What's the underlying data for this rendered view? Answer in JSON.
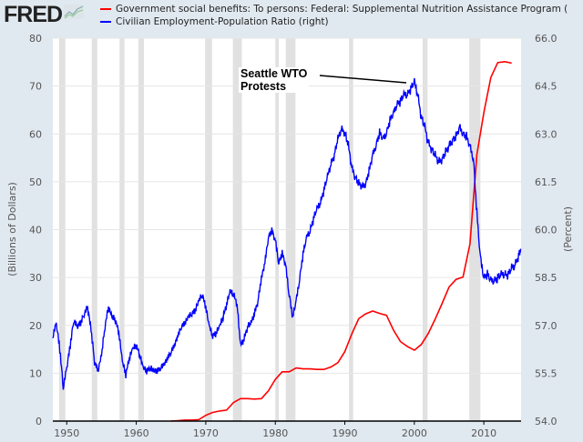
{
  "header": {
    "logo": "FRED",
    "logo_icon": "fred-chart-icon"
  },
  "chart_data": {
    "type": "line",
    "title": "",
    "xlabel": "",
    "ylabel_left": "(Billions of Dollars)",
    "ylabel_right": "(Percent)",
    "xlim": [
      1948,
      2015.35
    ],
    "ylim_left": [
      0,
      80
    ],
    "ylim_right": [
      54.0,
      66.0
    ],
    "x_ticks": [
      "1950",
      "1960",
      "1970",
      "1980",
      "1990",
      "2000",
      "2010"
    ],
    "y_ticks_left": [
      "0",
      "10",
      "20",
      "30",
      "40",
      "50",
      "60",
      "70",
      "80"
    ],
    "y_ticks_right": [
      "54.0",
      "55.5",
      "57.0",
      "58.5",
      "60.0",
      "61.5",
      "63.0",
      "64.5",
      "66.0"
    ],
    "grid": true,
    "legend_position": "top",
    "colors": {
      "snap": "#ff0000",
      "emp": "#0000ff",
      "recession": "#e1e1e1"
    },
    "recessions": [
      [
        1948.9,
        1949.8
      ],
      [
        1953.6,
        1954.4
      ],
      [
        1957.6,
        1958.3
      ],
      [
        1960.3,
        1961.1
      ],
      [
        1969.9,
        1970.9
      ],
      [
        1973.9,
        1975.2
      ],
      [
        1980.0,
        1980.5
      ],
      [
        1981.5,
        1982.9
      ],
      [
        1990.6,
        1991.2
      ],
      [
        2001.2,
        2001.9
      ],
      [
        2007.9,
        2009.5
      ]
    ],
    "annotation": {
      "text_line1": "Seattle WTO",
      "text_line2": "Protests",
      "target_x": 1999.9,
      "target_y_right": 64.5
    },
    "series": [
      {
        "name": "Government social benefits: To persons: Federal: Supplemental Nutrition Assistance Program (",
        "axis": "left",
        "x": [
          1965,
          1966,
          1967,
          1968,
          1969,
          1970,
          1971,
          1972,
          1973,
          1974,
          1975,
          1976,
          1977,
          1978,
          1979,
          1980,
          1981,
          1982,
          1983,
          1984,
          1985,
          1986,
          1987,
          1988,
          1989,
          1990,
          1991,
          1992,
          1993,
          1994,
          1995,
          1996,
          1997,
          1998,
          1999,
          2000,
          2001,
          2002,
          2003,
          2004,
          2005,
          2006,
          2007,
          2008,
          2009,
          2010,
          2011,
          2012,
          2013,
          2014
        ],
        "values": [
          0.0,
          0.1,
          0.2,
          0.2,
          0.3,
          1.2,
          1.8,
          2.1,
          2.3,
          3.9,
          4.7,
          4.7,
          4.6,
          4.7,
          6.3,
          8.7,
          10.3,
          10.3,
          11.1,
          10.9,
          10.9,
          10.8,
          10.8,
          11.3,
          12.2,
          14.5,
          18.2,
          21.4,
          22.4,
          23.0,
          22.5,
          22.1,
          19.0,
          16.6,
          15.6,
          14.8,
          16.0,
          18.3,
          21.3,
          24.6,
          28.0,
          29.6,
          30.1,
          37.0,
          55.7,
          64.5,
          71.8,
          74.9,
          75.1,
          74.8
        ]
      },
      {
        "name": "Civilian Employment-Population Ratio (right)",
        "axis": "right",
        "x": [
          1948,
          1948.5,
          1949,
          1949.5,
          1950,
          1950.5,
          1951,
          1951.5,
          1952,
          1952.5,
          1953,
          1953.5,
          1954,
          1954.5,
          1955,
          1955.5,
          1956,
          1956.5,
          1957,
          1957.5,
          1958,
          1958.5,
          1959,
          1959.5,
          1960,
          1960.5,
          1961,
          1961.5,
          1962,
          1962.5,
          1963,
          1963.5,
          1964,
          1964.5,
          1965,
          1965.5,
          1966,
          1966.5,
          1967,
          1967.5,
          1968,
          1968.5,
          1969,
          1969.5,
          1970,
          1970.5,
          1971,
          1971.5,
          1972,
          1972.5,
          1973,
          1973.5,
          1974,
          1974.5,
          1975,
          1975.5,
          1976,
          1976.5,
          1977,
          1977.5,
          1978,
          1978.5,
          1979,
          1979.5,
          1980,
          1980.5,
          1981,
          1981.5,
          1982,
          1982.5,
          1983,
          1983.5,
          1984,
          1984.5,
          1985,
          1985.5,
          1986,
          1986.5,
          1987,
          1987.5,
          1988,
          1988.5,
          1989,
          1989.5,
          1990,
          1990.5,
          1991,
          1991.5,
          1992,
          1992.5,
          1993,
          1993.5,
          1994,
          1994.5,
          1995,
          1995.5,
          1996,
          1996.5,
          1997,
          1997.5,
          1998,
          1998.5,
          1999,
          1999.5,
          2000,
          2000.5,
          2001,
          2001.5,
          2002,
          2002.5,
          2003,
          2003.5,
          2004,
          2004.5,
          2005,
          2005.5,
          2006,
          2006.5,
          2007,
          2007.5,
          2008,
          2008.5,
          2009,
          2009.5,
          2010,
          2010.5,
          2011,
          2011.5,
          2012,
          2012.5,
          2013,
          2013.5,
          2014,
          2014.5,
          2015,
          2015.3
        ],
        "values": [
          56.6,
          57.0,
          56.2,
          55.0,
          55.6,
          56.3,
          57.1,
          56.9,
          57.0,
          57.3,
          57.5,
          56.8,
          55.8,
          55.5,
          56.0,
          56.9,
          57.5,
          57.2,
          57.1,
          56.7,
          55.8,
          55.4,
          55.9,
          56.2,
          56.3,
          56.0,
          55.6,
          55.5,
          55.6,
          55.5,
          55.5,
          55.6,
          55.7,
          55.9,
          56.1,
          56.3,
          56.6,
          56.9,
          57.0,
          57.2,
          57.3,
          57.4,
          57.7,
          57.9,
          57.5,
          56.9,
          56.6,
          56.7,
          56.9,
          57.2,
          57.6,
          58.0,
          57.9,
          57.6,
          56.3,
          56.5,
          56.9,
          57.0,
          57.3,
          57.7,
          58.4,
          58.9,
          59.7,
          59.9,
          59.6,
          58.9,
          59.2,
          58.8,
          57.9,
          57.2,
          57.7,
          58.4,
          59.2,
          59.7,
          59.9,
          60.3,
          60.6,
          60.8,
          61.2,
          61.6,
          62.0,
          62.3,
          62.8,
          63.1,
          63.0,
          62.6,
          61.9,
          61.6,
          61.4,
          61.3,
          61.4,
          61.8,
          62.3,
          62.6,
          63.0,
          62.8,
          63.0,
          63.4,
          63.6,
          63.9,
          64.0,
          64.2,
          64.2,
          64.4,
          64.6,
          64.2,
          63.5,
          63.2,
          62.7,
          62.5,
          62.3,
          62.1,
          62.2,
          62.4,
          62.6,
          62.8,
          62.9,
          63.2,
          63.0,
          62.9,
          62.6,
          62.2,
          60.5,
          59.1,
          58.5,
          58.6,
          58.4,
          58.4,
          58.5,
          58.6,
          58.6,
          58.6,
          58.8,
          58.9,
          59.2,
          59.4
        ]
      }
    ]
  }
}
